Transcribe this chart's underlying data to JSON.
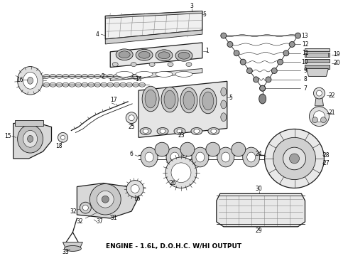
{
  "caption": "ENGINE - 1.6L, D.O.H.C. W/HI OUTPUT",
  "caption_fontsize": 6.5,
  "background_color": "#ffffff",
  "line_color": "#1a1a1a",
  "text_color": "#000000",
  "number_fontsize": 5.5,
  "fig_width": 4.9,
  "fig_height": 3.6,
  "dpi": 100,
  "gray_fill": "#888888",
  "light_gray": "#cccccc",
  "dark_gray": "#555555"
}
